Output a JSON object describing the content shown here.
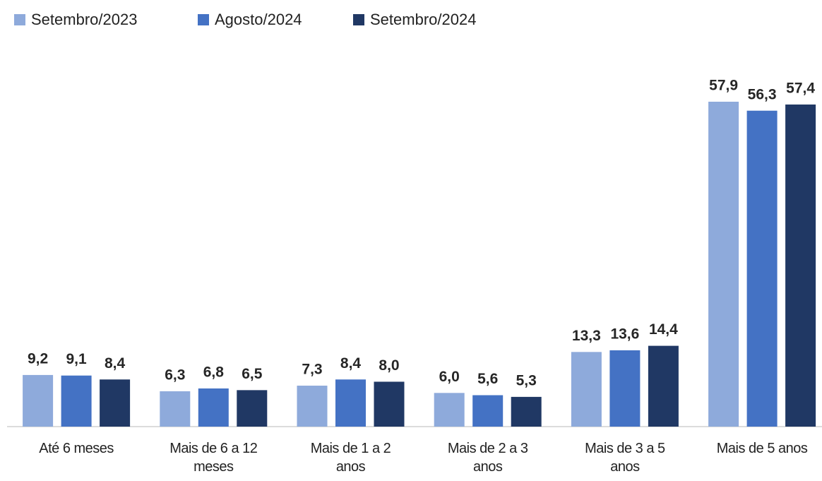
{
  "chart_data": {
    "type": "bar",
    "categories": [
      "Até 6 meses",
      "Mais de 6 a 12 meses",
      "Mais de 1 a 2 anos",
      "Mais de 2 a 3 anos",
      "Mais de 3 a 5 anos",
      "Mais de 5 anos"
    ],
    "series": [
      {
        "name": "Setembro/2023",
        "color": "#8eaadb",
        "values": [
          9.2,
          6.3,
          7.3,
          6.0,
          13.3,
          57.9
        ],
        "value_labels": [
          "9,2",
          "6,3",
          "7,3",
          "6,0",
          "13,3",
          "57,9"
        ]
      },
      {
        "name": "Agosto/2024",
        "color": "#4472c4",
        "values": [
          9.1,
          6.8,
          8.4,
          5.6,
          13.6,
          56.3
        ],
        "value_labels": [
          "9,1",
          "6,8",
          "8,4",
          "5,6",
          "13,6",
          "56,3"
        ]
      },
      {
        "name": "Setembro/2024",
        "color": "#203864",
        "values": [
          8.4,
          6.5,
          8.0,
          5.3,
          14.4,
          57.4
        ],
        "value_labels": [
          "8,4",
          "6,5",
          "8,0",
          "5,3",
          "14,4",
          "57,4"
        ]
      }
    ],
    "legend": "top-left"
  }
}
